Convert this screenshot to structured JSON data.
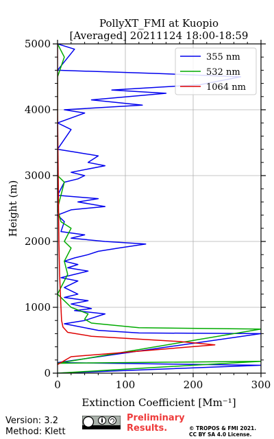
{
  "chart_data": {
    "type": "line",
    "title_line1": "PollyXT_FMI at Kuopio",
    "title_line2": "[Averaged] 20211124 18:00-18:59",
    "xlabel": "Extinction Coefficient [Mm⁻¹]",
    "ylabel": "Height (m)",
    "xlim": [
      0,
      300
    ],
    "ylim": [
      0,
      5000
    ],
    "xticks": [
      0,
      100,
      200,
      300
    ],
    "yticks": [
      0,
      1000,
      2000,
      3000,
      4000,
      5000
    ],
    "grid": true,
    "legend_position": "top-right",
    "series": [
      {
        "name": "355 nm",
        "color": "#0000ee",
        "points": [
          [
            0,
            0
          ],
          [
            300,
            120
          ],
          [
            0,
            160
          ],
          [
            300,
            600
          ],
          [
            120,
            610
          ],
          [
            60,
            650
          ],
          [
            25,
            720
          ],
          [
            10,
            750
          ],
          [
            40,
            800
          ],
          [
            70,
            900
          ],
          [
            25,
            950
          ],
          [
            50,
            980
          ],
          [
            20,
            1050
          ],
          [
            45,
            1100
          ],
          [
            10,
            1150
          ],
          [
            30,
            1200
          ],
          [
            10,
            1300
          ],
          [
            30,
            1400
          ],
          [
            5,
            1450
          ],
          [
            25,
            1500
          ],
          [
            45,
            1550
          ],
          [
            15,
            1600
          ],
          [
            30,
            1650
          ],
          [
            10,
            1700
          ],
          [
            25,
            1750
          ],
          [
            45,
            1800
          ],
          [
            60,
            1850
          ],
          [
            90,
            1900
          ],
          [
            130,
            1960
          ],
          [
            70,
            2000
          ],
          [
            20,
            2050
          ],
          [
            40,
            2100
          ],
          [
            5,
            2150
          ],
          [
            10,
            2300
          ],
          [
            0,
            2400
          ],
          [
            20,
            2480
          ],
          [
            70,
            2530
          ],
          [
            30,
            2600
          ],
          [
            60,
            2650
          ],
          [
            0,
            2700
          ],
          [
            10,
            2900
          ],
          [
            30,
            2950
          ],
          [
            40,
            3000
          ],
          [
            20,
            3050
          ],
          [
            70,
            3150
          ],
          [
            45,
            3200
          ],
          [
            60,
            3300
          ],
          [
            30,
            3350
          ],
          [
            0,
            3400
          ],
          [
            20,
            3700
          ],
          [
            0,
            3800
          ],
          [
            40,
            3950
          ],
          [
            10,
            4000
          ],
          [
            125,
            4070
          ],
          [
            50,
            4150
          ],
          [
            160,
            4250
          ],
          [
            80,
            4300
          ],
          [
            210,
            4380
          ],
          [
            270,
            4500
          ],
          [
            150,
            4550
          ],
          [
            0,
            4600
          ],
          [
            25,
            4920
          ],
          [
            0,
            5000
          ]
        ]
      },
      {
        "name": "532 nm",
        "color": "#00aa00",
        "points": [
          [
            0,
            0
          ],
          [
            300,
            180
          ],
          [
            0,
            150
          ],
          [
            300,
            670
          ],
          [
            120,
            690
          ],
          [
            50,
            760
          ],
          [
            40,
            820
          ],
          [
            45,
            900
          ],
          [
            20,
            1000
          ],
          [
            10,
            1100
          ],
          [
            0,
            1200
          ],
          [
            15,
            1500
          ],
          [
            10,
            1700
          ],
          [
            20,
            1900
          ],
          [
            10,
            2000
          ],
          [
            20,
            2200
          ],
          [
            5,
            2300
          ],
          [
            0,
            2500
          ],
          [
            10,
            2900
          ],
          [
            0,
            3000
          ],
          [
            0,
            3500
          ],
          [
            0,
            4000
          ],
          [
            0,
            4500
          ],
          [
            10,
            4800
          ],
          [
            0,
            5000
          ]
        ]
      },
      {
        "name": "1064 nm",
        "color": "#dd0000",
        "points": [
          [
            0,
            130
          ],
          [
            20,
            250
          ],
          [
            80,
            300
          ],
          [
            232,
            430
          ],
          [
            180,
            480
          ],
          [
            50,
            560
          ],
          [
            15,
            620
          ],
          [
            8,
            700
          ],
          [
            6,
            800
          ],
          [
            5,
            1000
          ],
          [
            3,
            1500
          ],
          [
            2,
            2000
          ],
          [
            1,
            3000
          ],
          [
            0,
            4000
          ],
          [
            0,
            5000
          ]
        ]
      }
    ]
  },
  "footer": {
    "version": "Version: 3.2",
    "method": "Method: Klett",
    "preliminary_line1": "Preliminary",
    "preliminary_line2": "Results.",
    "copyright_line1": "© TROPOS & FMI 2021.",
    "copyright_line2": "CC BY SA 4.0 License."
  }
}
